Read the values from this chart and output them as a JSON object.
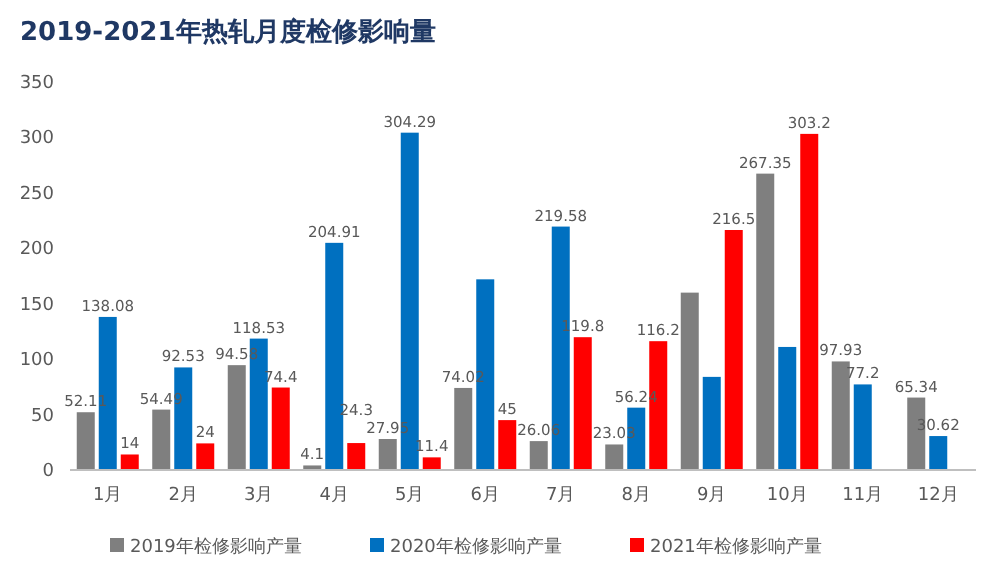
{
  "chart_data": {
    "type": "bar",
    "title": "2019-2021年热轧月度检修影响量",
    "categories": [
      "1月",
      "2月",
      "3月",
      "4月",
      "5月",
      "6月",
      "7月",
      "8月",
      "9月",
      "10月",
      "11月",
      "12月"
    ],
    "series": [
      {
        "name": "2019年检修影响产量",
        "color": "#7f7f7f",
        "values": [
          52.11,
          54.49,
          94.58,
          4.1,
          27.95,
          74.02,
          26.06,
          23.03,
          160,
          267.35,
          97.93,
          65.34
        ],
        "value_labels": [
          "52.11",
          "54.49",
          "94.58",
          "4.1",
          "27.95",
          "74.02",
          "26.06",
          "23.03",
          null,
          "267.35",
          "97.93",
          "65.34"
        ]
      },
      {
        "name": "2020年检修影响产量",
        "color": "#0070c0",
        "values": [
          138.08,
          92.53,
          118.53,
          204.91,
          304.29,
          172,
          219.58,
          56.24,
          84,
          111,
          77.2,
          30.62
        ],
        "value_labels": [
          "138.08",
          "92.53",
          "118.53",
          "204.91",
          "304.29",
          null,
          "219.58",
          "56.24",
          null,
          null,
          "77.2",
          "30.62"
        ]
      },
      {
        "name": "2021年检修影响产量",
        "color": "#ff0000",
        "values": [
          14,
          24,
          74.4,
          24.3,
          11.4,
          45,
          119.8,
          116.2,
          216.5,
          303.2,
          null,
          null
        ],
        "value_labels": [
          "14",
          "24",
          "74.4",
          "24.3",
          "11.4",
          "45",
          "119.8",
          "116.2",
          "216.5",
          "303.2",
          null,
          null
        ]
      }
    ],
    "ylim": [
      0,
      350
    ],
    "yticks": [
      0,
      50,
      100,
      150,
      200,
      250,
      300,
      350
    ],
    "grid": false,
    "legend": "bottom"
  }
}
